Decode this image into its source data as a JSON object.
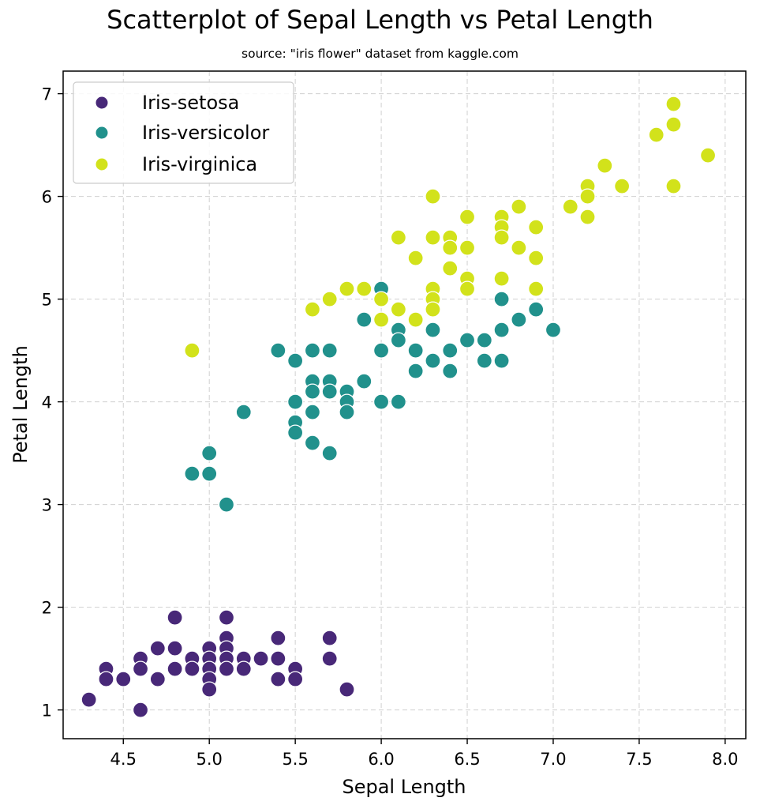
{
  "colors": {
    "Iris-setosa": "#482878",
    "Iris-versicolor": "#21918c",
    "Iris-virginica": "#d2e21b",
    "grid": "#d0d0d0",
    "frame": "#000000"
  },
  "chart_data": {
    "type": "scatter",
    "title": "Scatterplot of Sepal Length vs Petal Length",
    "subtitle": "source: \"iris flower\" dataset from kaggle.com",
    "xlabel": "Sepal Length",
    "ylabel": "Petal Length",
    "xlim": [
      4.15,
      8.12
    ],
    "ylim": [
      0.72,
      7.22
    ],
    "grid": true,
    "legend_position": "top-left",
    "x_ticks": [
      {
        "value": 4.5,
        "label": "4.5"
      },
      {
        "value": 5.0,
        "label": "5.0"
      },
      {
        "value": 5.5,
        "label": "5.5"
      },
      {
        "value": 6.0,
        "label": "6.0"
      },
      {
        "value": 6.5,
        "label": "6.5"
      },
      {
        "value": 7.0,
        "label": "7.0"
      },
      {
        "value": 7.5,
        "label": "7.5"
      },
      {
        "value": 8.0,
        "label": "8.0"
      }
    ],
    "y_ticks": [
      {
        "value": 1,
        "label": "1"
      },
      {
        "value": 2,
        "label": "2"
      },
      {
        "value": 3,
        "label": "3"
      },
      {
        "value": 4,
        "label": "4"
      },
      {
        "value": 5,
        "label": "5"
      },
      {
        "value": 6,
        "label": "6"
      },
      {
        "value": 7,
        "label": "7"
      }
    ],
    "series": [
      {
        "name": "Iris-setosa",
        "points": [
          [
            4.3,
            1.1
          ],
          [
            4.4,
            1.4
          ],
          [
            4.4,
            1.3
          ],
          [
            4.5,
            1.3
          ],
          [
            4.6,
            1.5
          ],
          [
            4.6,
            1.4
          ],
          [
            4.6,
            1.0
          ],
          [
            4.7,
            1.6
          ],
          [
            4.7,
            1.3
          ],
          [
            4.8,
            1.9
          ],
          [
            4.8,
            1.6
          ],
          [
            4.8,
            1.4
          ],
          [
            4.9,
            1.5
          ],
          [
            4.9,
            1.4
          ],
          [
            5.0,
            1.6
          ],
          [
            5.0,
            1.5
          ],
          [
            5.0,
            1.4
          ],
          [
            5.0,
            1.3
          ],
          [
            5.0,
            1.2
          ],
          [
            5.1,
            1.9
          ],
          [
            5.1,
            1.7
          ],
          [
            5.1,
            1.6
          ],
          [
            5.1,
            1.5
          ],
          [
            5.1,
            1.4
          ],
          [
            5.2,
            1.5
          ],
          [
            5.2,
            1.4
          ],
          [
            5.3,
            1.5
          ],
          [
            5.4,
            1.7
          ],
          [
            5.4,
            1.5
          ],
          [
            5.4,
            1.3
          ],
          [
            5.5,
            1.4
          ],
          [
            5.5,
            1.3
          ],
          [
            5.7,
            1.7
          ],
          [
            5.7,
            1.5
          ],
          [
            5.8,
            1.2
          ]
        ]
      },
      {
        "name": "Iris-versicolor",
        "points": [
          [
            4.9,
            3.3
          ],
          [
            5.0,
            3.5
          ],
          [
            5.0,
            3.3
          ],
          [
            5.1,
            3.0
          ],
          [
            5.2,
            3.9
          ],
          [
            5.4,
            4.5
          ],
          [
            5.5,
            4.4
          ],
          [
            5.5,
            4.0
          ],
          [
            5.5,
            3.8
          ],
          [
            5.5,
            3.7
          ],
          [
            5.6,
            4.5
          ],
          [
            5.6,
            4.2
          ],
          [
            5.6,
            4.1
          ],
          [
            5.6,
            3.9
          ],
          [
            5.6,
            3.6
          ],
          [
            5.7,
            4.5
          ],
          [
            5.7,
            4.2
          ],
          [
            5.7,
            4.1
          ],
          [
            5.7,
            3.5
          ],
          [
            5.8,
            4.1
          ],
          [
            5.8,
            4.0
          ],
          [
            5.8,
            3.9
          ],
          [
            5.9,
            4.8
          ],
          [
            5.9,
            4.2
          ],
          [
            6.0,
            5.1
          ],
          [
            6.0,
            4.5
          ],
          [
            6.0,
            4.0
          ],
          [
            6.1,
            4.7
          ],
          [
            6.1,
            4.6
          ],
          [
            6.1,
            4.0
          ],
          [
            6.2,
            4.5
          ],
          [
            6.2,
            4.3
          ],
          [
            6.3,
            4.9
          ],
          [
            6.3,
            4.7
          ],
          [
            6.3,
            4.4
          ],
          [
            6.4,
            4.5
          ],
          [
            6.4,
            4.3
          ],
          [
            6.5,
            4.6
          ],
          [
            6.6,
            4.6
          ],
          [
            6.6,
            4.4
          ],
          [
            6.7,
            5.0
          ],
          [
            6.7,
            4.7
          ],
          [
            6.7,
            4.4
          ],
          [
            6.8,
            4.8
          ],
          [
            6.9,
            4.9
          ],
          [
            7.0,
            4.7
          ]
        ]
      },
      {
        "name": "Iris-virginica",
        "points": [
          [
            4.9,
            4.5
          ],
          [
            5.6,
            4.9
          ],
          [
            5.7,
            5.0
          ],
          [
            5.8,
            5.1
          ],
          [
            5.9,
            5.1
          ],
          [
            6.0,
            5.0
          ],
          [
            6.0,
            4.8
          ],
          [
            6.1,
            5.6
          ],
          [
            6.1,
            4.9
          ],
          [
            6.2,
            5.4
          ],
          [
            6.2,
            4.8
          ],
          [
            6.3,
            6.0
          ],
          [
            6.3,
            5.6
          ],
          [
            6.3,
            5.1
          ],
          [
            6.3,
            5.0
          ],
          [
            6.3,
            4.9
          ],
          [
            6.4,
            5.6
          ],
          [
            6.4,
            5.5
          ],
          [
            6.4,
            5.3
          ],
          [
            6.5,
            5.8
          ],
          [
            6.5,
            5.5
          ],
          [
            6.5,
            5.2
          ],
          [
            6.5,
            5.1
          ],
          [
            6.7,
            5.8
          ],
          [
            6.7,
            5.7
          ],
          [
            6.7,
            5.6
          ],
          [
            6.7,
            5.2
          ],
          [
            6.8,
            5.9
          ],
          [
            6.8,
            5.5
          ],
          [
            6.9,
            5.7
          ],
          [
            6.9,
            5.4
          ],
          [
            6.9,
            5.1
          ],
          [
            7.1,
            5.9
          ],
          [
            7.2,
            6.1
          ],
          [
            7.2,
            6.0
          ],
          [
            7.2,
            5.8
          ],
          [
            7.3,
            6.3
          ],
          [
            7.4,
            6.1
          ],
          [
            7.6,
            6.6
          ],
          [
            7.7,
            6.9
          ],
          [
            7.7,
            6.7
          ],
          [
            7.7,
            6.1
          ],
          [
            7.9,
            6.4
          ]
        ]
      }
    ]
  }
}
